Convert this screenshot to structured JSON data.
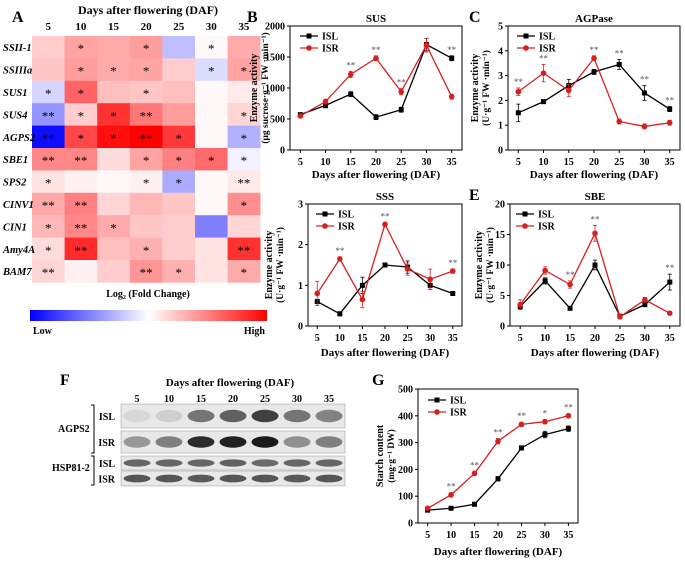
{
  "panel_letters": {
    "A": "A",
    "B": "B",
    "C": "C",
    "D": "D",
    "E": "E",
    "F": "F",
    "G": "G"
  },
  "legend_names": {
    "isl": "ISL",
    "isr": "ISR"
  },
  "line_colors": {
    "isl": "#000000",
    "isr": "#d62020"
  },
  "heatmap": {
    "title": "Days after flowering (DAF)",
    "days": [
      "5",
      "10",
      "15",
      "20",
      "25",
      "30",
      "35"
    ],
    "genes": [
      "SSII-1",
      "SSIIIa",
      "SUS1",
      "SUS4",
      "AGPS2",
      "SBE1",
      "SPS2",
      "CINV1",
      "CIN1",
      "Amy4A",
      "BAM7"
    ],
    "values": [
      [
        0.35,
        0.65,
        0.6,
        0.7,
        -0.45,
        0.05,
        0.6
      ],
      [
        0.4,
        0.7,
        0.6,
        0.65,
        0.35,
        -0.25,
        0.65
      ],
      [
        -0.3,
        1.1,
        0.45,
        0.4,
        0.45,
        0.05,
        0.15
      ],
      [
        -0.75,
        0.35,
        1.45,
        0.95,
        0.7,
        0.05,
        0.3
      ],
      [
        -1.7,
        1.3,
        1.7,
        1.8,
        1.4,
        0.05,
        -0.55
      ],
      [
        0.85,
        0.85,
        0.25,
        0.65,
        0.9,
        1.05,
        -0.1
      ],
      [
        0.2,
        0.1,
        0.05,
        0.1,
        -0.6,
        0.05,
        0.15
      ],
      [
        0.6,
        0.9,
        0.3,
        0.5,
        0.4,
        0.05,
        0.8
      ],
      [
        0.5,
        0.85,
        0.6,
        0.4,
        0.35,
        -0.9,
        0.3
      ],
      [
        0.25,
        1.5,
        0.45,
        0.55,
        0.35,
        0.2,
        1.45
      ],
      [
        0.3,
        0.1,
        0.35,
        0.75,
        0.55,
        0.2,
        0.6
      ]
    ],
    "stars": [
      [
        "",
        "*",
        "",
        "*",
        "",
        "*",
        ""
      ],
      [
        "",
        "*",
        "*",
        "*",
        "",
        "*",
        "*"
      ],
      [
        "*",
        "*",
        "",
        "*",
        "",
        "",
        ""
      ],
      [
        "**",
        "*",
        "*",
        "**",
        "",
        "",
        "*"
      ],
      [
        "**",
        "*",
        "*",
        "**",
        "*",
        "",
        "*"
      ],
      [
        "**",
        "**",
        "",
        "*",
        "*",
        "*",
        "*"
      ],
      [
        "*",
        "",
        "",
        "*",
        "*",
        "",
        "**"
      ],
      [
        "**",
        "**",
        "",
        "",
        "",
        "",
        "*"
      ],
      [
        "*",
        "**",
        "*",
        "",
        "",
        "",
        ""
      ],
      [
        "*",
        "**",
        "",
        "*",
        "",
        "",
        "**"
      ],
      [
        "**",
        "",
        "",
        "**",
        "*",
        "",
        "*"
      ]
    ],
    "colorbar_label": "Log₂ (Fold Change)",
    "low_label": "Low",
    "high_label": "High",
    "colors": {
      "low": "#0000ff",
      "mid": "#ffffff",
      "high": "#ff0000"
    }
  },
  "western": {
    "title": "Days after flowering (DAF)",
    "days": [
      "5",
      "10",
      "15",
      "20",
      "25",
      "30",
      "35"
    ],
    "proteins": [
      "AGPS2",
      "HSP81-2"
    ],
    "rows": [
      "ISL",
      "ISR",
      "ISL",
      "ISR"
    ],
    "band_intensity": [
      [
        0.08,
        0.12,
        0.55,
        0.65,
        0.8,
        0.55,
        0.48
      ],
      [
        0.38,
        0.5,
        0.9,
        0.95,
        0.98,
        0.42,
        0.5
      ],
      [
        0.62,
        0.62,
        0.62,
        0.65,
        0.6,
        0.62,
        0.62
      ],
      [
        0.7,
        0.7,
        0.68,
        0.7,
        0.7,
        0.68,
        0.7
      ]
    ]
  },
  "chart_data": [
    {
      "id": "B",
      "type": "line",
      "title": "SUS",
      "x": [
        5,
        10,
        15,
        20,
        25,
        30,
        35
      ],
      "xlabel": "Days after flowering (DAF)",
      "ylabel": "Enzyme activity",
      "ylabel_sub": "(μg sucrose·g⁻¹ FW ·min⁻¹)",
      "ylim": [
        0,
        2000
      ],
      "yticks": [
        0,
        500,
        1000,
        1500,
        2000
      ],
      "series": [
        {
          "name": "ISL",
          "values": [
            570,
            720,
            900,
            530,
            650,
            1700,
            1480
          ],
          "err": [
            30,
            40,
            40,
            40,
            40,
            100,
            40
          ]
        },
        {
          "name": "ISR",
          "values": [
            550,
            780,
            1220,
            1480,
            940,
            1690,
            860
          ],
          "err": [
            30,
            40,
            50,
            40,
            50,
            110,
            40
          ]
        }
      ],
      "annotations": [
        "",
        "",
        "**",
        "**",
        "**",
        "",
        "**"
      ]
    },
    {
      "id": "C",
      "type": "line",
      "title": "AGPase",
      "x": [
        5,
        10,
        15,
        20,
        25,
        30,
        35
      ],
      "xlabel": "Days after flowering (DAF)",
      "ylabel": "Enzyme activity",
      "ylabel_sub": "(U·g⁻¹ FW ·min⁻¹)",
      "ylim": [
        0,
        5
      ],
      "yticks": [
        0,
        1,
        2,
        3,
        4,
        5
      ],
      "series": [
        {
          "name": "ISL",
          "values": [
            1.5,
            1.95,
            2.6,
            3.15,
            3.45,
            2.3,
            1.65
          ],
          "err": [
            0.35,
            0.05,
            0.25,
            0.1,
            0.2,
            0.3,
            0.1
          ]
        },
        {
          "name": "ISR",
          "values": [
            2.35,
            3.1,
            2.4,
            3.7,
            1.15,
            0.95,
            1.1
          ],
          "err": [
            0.15,
            0.35,
            0.25,
            0.1,
            0.1,
            0.1,
            0.1
          ]
        }
      ],
      "annotations": [
        "**",
        "**",
        "",
        "**",
        "**",
        "**",
        "**"
      ]
    },
    {
      "id": "D",
      "type": "line",
      "title": "SSS",
      "x": [
        5,
        10,
        15,
        20,
        25,
        30,
        35
      ],
      "xlabel": "Days after flowering (DAF)",
      "ylabel": "Enzyme activity",
      "ylabel_sub": "(U·g⁻¹ FW ·min⁻¹)",
      "ylim": [
        0,
        3
      ],
      "yticks": [
        0,
        1,
        2,
        3
      ],
      "series": [
        {
          "name": "ISL",
          "values": [
            0.6,
            0.3,
            1.0,
            1.5,
            1.45,
            1.0,
            0.8
          ],
          "err": [
            0.05,
            0.05,
            0.2,
            0.05,
            0.15,
            0.1,
            0.05
          ]
        },
        {
          "name": "ISR",
          "values": [
            0.8,
            1.65,
            0.65,
            2.5,
            1.4,
            1.15,
            1.35
          ],
          "err": [
            0.3,
            0.05,
            0.2,
            0.05,
            0.15,
            0.25,
            0.05
          ]
        }
      ],
      "annotations": [
        "",
        "**",
        "",
        "**",
        "",
        "",
        "**"
      ]
    },
    {
      "id": "E",
      "type": "line",
      "title": "SBE",
      "x": [
        5,
        10,
        15,
        20,
        25,
        30,
        35
      ],
      "xlabel": "Days after flowering (DAF)",
      "ylabel": "Enzyme activity",
      "ylabel_sub": "(U·g⁻¹ FW ·min⁻¹)",
      "ylim": [
        0,
        20
      ],
      "yticks": [
        0,
        5,
        10,
        15,
        20
      ],
      "series": [
        {
          "name": "ISL",
          "values": [
            3.2,
            7.4,
            2.9,
            10.0,
            1.6,
            3.5,
            7.2
          ],
          "err": [
            0.5,
            0.5,
            0.1,
            0.8,
            0.1,
            0.3,
            1.3
          ]
        },
        {
          "name": "ISR",
          "values": [
            3.5,
            9.1,
            6.8,
            15.2,
            1.5,
            4.3,
            2.1
          ],
          "err": [
            0.8,
            0.6,
            0.6,
            1.3,
            0.1,
            0.4,
            0.2
          ]
        }
      ],
      "annotations": [
        "",
        "",
        "**",
        "**",
        "",
        "",
        "**"
      ]
    },
    {
      "id": "G",
      "type": "line",
      "title": "",
      "x": [
        5,
        10,
        15,
        20,
        25,
        30,
        35
      ],
      "xlabel": "Days after flowering (DAF)",
      "ylabel": "Starch content",
      "ylabel_sub": "(mg·g⁻¹ DW)",
      "ylim": [
        0,
        500
      ],
      "yticks": [
        0,
        100,
        200,
        300,
        400,
        500
      ],
      "series": [
        {
          "name": "ISL",
          "values": [
            48,
            55,
            70,
            165,
            280,
            330,
            352
          ],
          "err": [
            5,
            5,
            5,
            8,
            8,
            12,
            10
          ]
        },
        {
          "name": "ISR",
          "values": [
            55,
            105,
            185,
            305,
            368,
            378,
            400
          ],
          "err": [
            5,
            8,
            8,
            10,
            8,
            8,
            8
          ]
        }
      ],
      "annotations": [
        "",
        "**",
        "**",
        "**",
        "**",
        "*",
        "**"
      ]
    }
  ]
}
